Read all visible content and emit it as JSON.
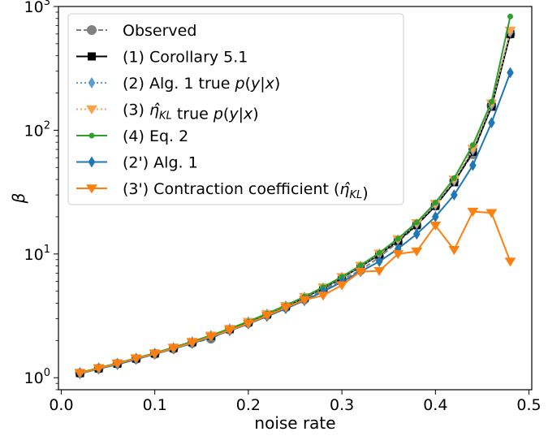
{
  "chart_data": {
    "type": "line",
    "xlabel": "noise rate",
    "ylabel": "β",
    "xlim": [
      -0.003,
      0.503
    ],
    "ylim": [
      0.8,
      1000
    ],
    "yscale": "log",
    "grid": false,
    "legend_position": "upper-left",
    "x_ticks": [
      {
        "value": 0.0,
        "label": "0.0"
      },
      {
        "value": 0.1,
        "label": "0.1"
      },
      {
        "value": 0.2,
        "label": "0.2"
      },
      {
        "value": 0.3,
        "label": "0.3"
      },
      {
        "value": 0.4,
        "label": "0.4"
      },
      {
        "value": 0.5,
        "label": "0.5"
      }
    ],
    "y_ticks": [
      {
        "value": 1,
        "base": "10",
        "exp": "0"
      },
      {
        "value": 10,
        "base": "10",
        "exp": "1"
      },
      {
        "value": 100,
        "base": "10",
        "exp": "2"
      },
      {
        "value": 1000,
        "base": "10",
        "exp": "3"
      }
    ],
    "x": [
      0.02,
      0.04,
      0.06,
      0.08,
      0.1,
      0.12,
      0.14,
      0.16,
      0.18,
      0.2,
      0.22,
      0.24,
      0.26,
      0.28,
      0.3,
      0.32,
      0.34,
      0.36,
      0.38,
      0.4,
      0.42,
      0.44,
      0.46,
      0.48
    ],
    "series": [
      {
        "name": "Observed",
        "legend": [
          {
            "t": "Observed"
          }
        ],
        "color": "#808080",
        "dash": "6,3",
        "marker": "circle",
        "marker_size": 5.5,
        "line_width": 2,
        "values": [
          1.09,
          1.19,
          1.3,
          1.42,
          1.56,
          1.72,
          1.91,
          2.07,
          2.45,
          2.77,
          3.22,
          3.71,
          4.3,
          5.1,
          6.2,
          7.4,
          9.4,
          12.5,
          17.0,
          24.5,
          39.0,
          64.0,
          158.0,
          600.0
        ]
      },
      {
        "name": "(1) Corollary 5.1",
        "legend": [
          {
            "t": "(1) Corollary 5.1"
          }
        ],
        "color": "#000000",
        "dash": "",
        "marker": "square",
        "marker_size": 4.5,
        "line_width": 2,
        "values": [
          1.09,
          1.19,
          1.3,
          1.43,
          1.57,
          1.74,
          1.94,
          2.18,
          2.47,
          2.82,
          3.25,
          3.78,
          4.45,
          5.3,
          6.42,
          7.9,
          9.9,
          12.8,
          17.2,
          24.5,
          38.0,
          67.0,
          155.0,
          600.0
        ]
      },
      {
        "name": "(2) Alg. 1 true p(y|x)",
        "legend": [
          {
            "t": "(2) Alg. 1 true "
          },
          {
            "t": "p",
            "i": true
          },
          {
            "t": "("
          },
          {
            "t": "y",
            "i": true
          },
          {
            "t": "|"
          },
          {
            "t": "x",
            "i": true
          },
          {
            "t": ")"
          }
        ],
        "color": "#5b9bd5",
        "dash": "2,3",
        "marker": "diamond",
        "marker_size": 6,
        "line_width": 2,
        "values": [
          1.1,
          1.2,
          1.31,
          1.44,
          1.58,
          1.75,
          1.95,
          2.19,
          2.48,
          2.83,
          3.27,
          3.8,
          4.47,
          5.33,
          6.46,
          7.95,
          10.0,
          13.0,
          17.5,
          25.0,
          39.0,
          69.0,
          160.0,
          620.0
        ]
      },
      {
        "name": "(3) η̂KL true p(y|x)",
        "legend": [
          {
            "t": "(3) "
          },
          {
            "t": "η̂",
            "i": true
          },
          {
            "t": "KL",
            "i": true,
            "sub": true
          },
          {
            "t": " true "
          },
          {
            "t": "p",
            "i": true
          },
          {
            "t": "("
          },
          {
            "t": "y",
            "i": true
          },
          {
            "t": "|"
          },
          {
            "t": "x",
            "i": true
          },
          {
            "t": ")"
          }
        ],
        "color": "#ffa04a",
        "dash": "2,3",
        "marker": "triangle-down",
        "marker_size": 6,
        "line_width": 2,
        "values": [
          1.1,
          1.2,
          1.31,
          1.44,
          1.58,
          1.76,
          1.96,
          2.2,
          2.49,
          2.84,
          3.28,
          3.82,
          4.5,
          5.38,
          6.52,
          8.05,
          10.1,
          13.2,
          17.8,
          25.5,
          40.0,
          71.0,
          165.0,
          640.0
        ]
      },
      {
        "name": "(4) Eq. 2",
        "legend": [
          {
            "t": "(4) Eq. 2"
          }
        ],
        "color": "#2ca02c",
        "dash": "",
        "marker": "circle",
        "marker_size": 3,
        "line_width": 2,
        "values": [
          1.1,
          1.2,
          1.31,
          1.44,
          1.58,
          1.76,
          1.96,
          2.2,
          2.49,
          2.85,
          3.3,
          3.84,
          4.52,
          5.4,
          6.55,
          8.1,
          10.2,
          13.3,
          18.0,
          26.0,
          41.0,
          76.0,
          170.0,
          830.0
        ]
      },
      {
        "name": "(2') Alg. 1",
        "legend": [
          {
            "t": "(2') Alg. 1"
          }
        ],
        "color": "#1f77b4",
        "dash": "",
        "marker": "diamond",
        "marker_size": 6,
        "line_width": 2,
        "values": [
          1.08,
          1.18,
          1.28,
          1.41,
          1.55,
          1.71,
          1.9,
          2.12,
          2.4,
          2.72,
          3.13,
          3.62,
          4.2,
          4.97,
          5.95,
          7.2,
          8.7,
          11.0,
          14.5,
          20.0,
          30.0,
          52.0,
          115.0,
          292.0
        ]
      },
      {
        "name": "(3') Contraction coefficient (η̂KL)",
        "legend": [
          {
            "t": "(3') Contraction coefficient ("
          },
          {
            "t": "η̂",
            "i": true
          },
          {
            "t": "KL",
            "i": true,
            "sub": true
          },
          {
            "t": ")"
          }
        ],
        "color": "#ff7f0e",
        "dash": "",
        "marker": "triangle-down",
        "marker_size": 6,
        "line_width": 2,
        "values": [
          1.09,
          1.19,
          1.3,
          1.43,
          1.56,
          1.73,
          1.92,
          2.15,
          2.42,
          2.74,
          3.18,
          3.7,
          4.25,
          4.62,
          5.6,
          7.2,
          7.3,
          10.0,
          10.5,
          17.0,
          10.8,
          22.0,
          21.5,
          8.7
        ]
      }
    ]
  }
}
